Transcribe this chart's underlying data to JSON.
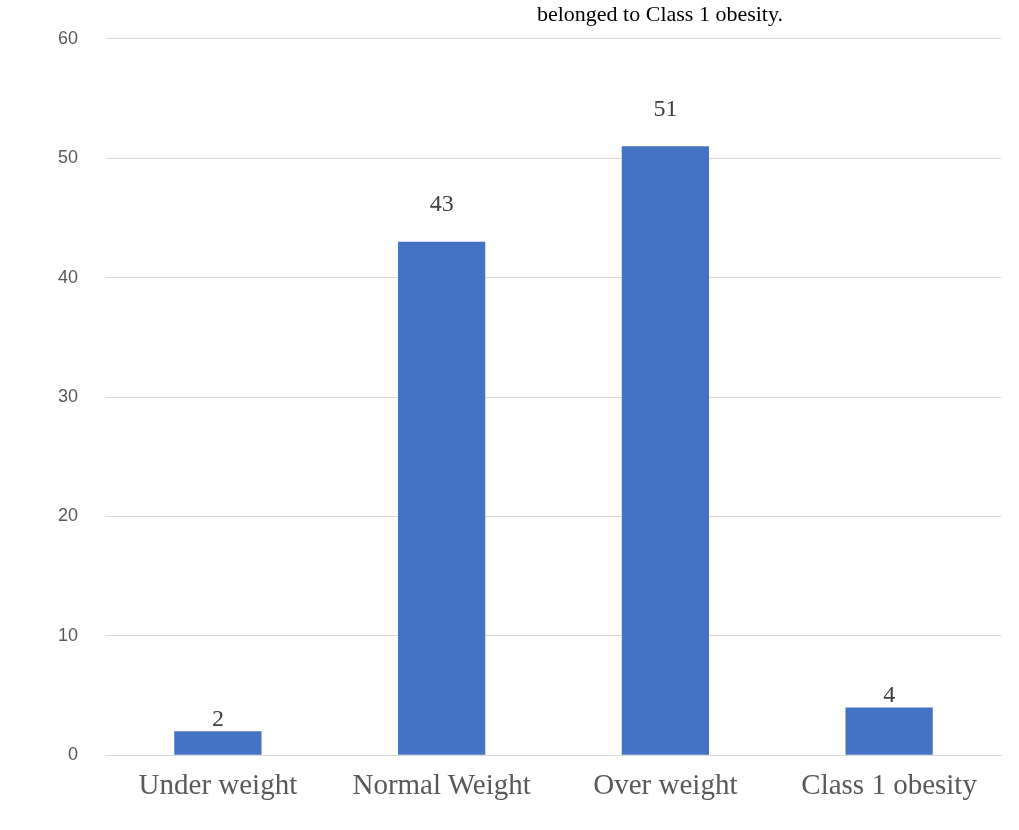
{
  "chart_data": {
    "type": "bar",
    "categories": [
      "Under weight",
      "Normal Weight",
      "Over weight",
      "Class 1 obesity"
    ],
    "values": [
      2,
      43,
      51,
      4
    ],
    "color": "#4472c4",
    "ylim": [
      0,
      60
    ],
    "yticks": [
      0,
      10,
      20,
      30,
      40,
      50,
      60
    ],
    "grid": "y",
    "data_labels": true,
    "legend": false,
    "annotations": [
      "belonged to Class 1 obesity."
    ]
  }
}
